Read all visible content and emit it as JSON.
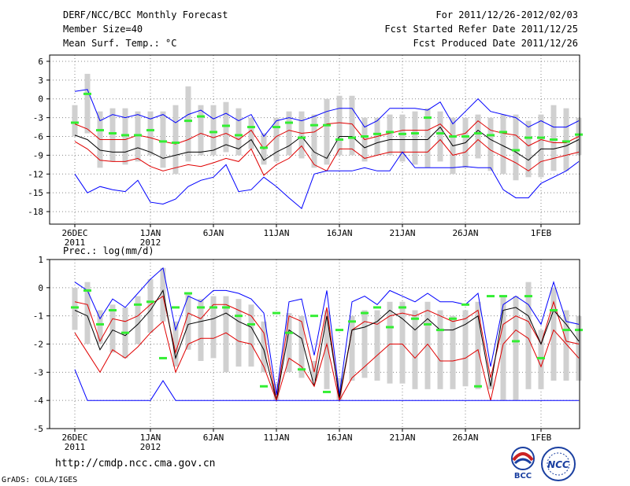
{
  "header": {
    "title": "DERF/NCC/BCC Monthly Forecast",
    "member_size": "Member Size=40",
    "variable": "Mean Surf. Temp.: °C",
    "period": "For 2011/12/26-2012/02/03",
    "started": "Fcst Started Refer Date 2011/12/25",
    "produced": "Fcst Produced Date 2011/12/26"
  },
  "prec_label": "Prec.: log(mm/d)",
  "url": "http://cmdp.ncc.cma.gov.cn",
  "credit": "GrADS: COLA/IGES",
  "logos": {
    "bcc": "BCC",
    "ncc": "NCC"
  },
  "colors": {
    "max_min": "#0000ff",
    "pct": "#e00000",
    "median": "#000000",
    "obs": "#33ee33",
    "box": "#d0d0d0"
  },
  "chart_data": [
    {
      "type": "line",
      "title": "Mean Surf. Temp.: °C",
      "ylim": [
        -20,
        7
      ],
      "yticks": [
        6,
        3,
        0,
        -3,
        -6,
        -9,
        -12,
        -15,
        -18
      ],
      "xticks": [
        {
          "day": 0,
          "label": "26DEC",
          "sub": "2011"
        },
        {
          "day": 6,
          "label": "1JAN",
          "sub": "2012"
        },
        {
          "day": 11,
          "label": "6JAN",
          "sub": ""
        },
        {
          "day": 16,
          "label": "11JAN",
          "sub": ""
        },
        {
          "day": 21,
          "label": "16JAN",
          "sub": ""
        },
        {
          "day": 26,
          "label": "21JAN",
          "sub": ""
        },
        {
          "day": 31,
          "label": "26JAN",
          "sub": ""
        },
        {
          "day": 37,
          "label": "1FEB",
          "sub": ""
        }
      ],
      "days": 40,
      "series": [
        {
          "name": "max",
          "values": [
            1.2,
            1.5,
            -3.5,
            -2.5,
            -3,
            -2.5,
            -3.2,
            -2.5,
            -3.8,
            -2.5,
            -1.8,
            -3.2,
            -2.3,
            -3.5,
            -2.5,
            -6,
            -3.5,
            -3,
            -3.5,
            -2.8,
            -2,
            -1.5,
            -1.5,
            -4.5,
            -3.5,
            -1.5,
            -1.5,
            -1.5,
            -1.8,
            -0.5,
            -4,
            -2,
            0,
            -2,
            -2.5,
            -3,
            -4.5,
            -3.5,
            -4.5,
            -4.5,
            -3.5
          ]
        },
        {
          "name": "p75",
          "values": [
            -4,
            -4.8,
            -6.5,
            -6.5,
            -6.5,
            -5.8,
            -6.2,
            -6.8,
            -7.2,
            -6.5,
            -5.5,
            -6.2,
            -5.5,
            -6.5,
            -5,
            -8,
            -6,
            -5,
            -5.5,
            -5.3,
            -4,
            -3.8,
            -4,
            -6.5,
            -6,
            -5.5,
            -5,
            -5,
            -5,
            -4,
            -6,
            -5.5,
            -3.5,
            -5,
            -5.5,
            -5.8,
            -7.5,
            -6.5,
            -7,
            -7,
            -6
          ]
        },
        {
          "name": "median",
          "values": [
            -5.8,
            -6.5,
            -8.2,
            -8.5,
            -8.5,
            -7.8,
            -8.5,
            -9.5,
            -9,
            -8.5,
            -8.5,
            -8.2,
            -7.3,
            -8,
            -6.5,
            -9.8,
            -8.5,
            -7.5,
            -6,
            -8.5,
            -9.5,
            -6,
            -6,
            -7.8,
            -7,
            -6.5,
            -6.5,
            -6.5,
            -6.5,
            -4.5,
            -7.5,
            -7,
            -5,
            -6.5,
            -7.5,
            -8.5,
            -9.8,
            -8,
            -8,
            -7.5,
            -6.5
          ]
        },
        {
          "name": "p25",
          "values": [
            -6.8,
            -8,
            -9.8,
            -10,
            -10,
            -9.5,
            -10.8,
            -11.5,
            -11,
            -10.5,
            -10.8,
            -10.2,
            -9.5,
            -10,
            -8,
            -12.2,
            -10.5,
            -9.5,
            -7.5,
            -10.5,
            -11.5,
            -8,
            -8,
            -9.5,
            -9,
            -8.5,
            -8.5,
            -8.5,
            -8.5,
            -6.5,
            -9,
            -8.5,
            -6.5,
            -8.2,
            -9.2,
            -10.2,
            -11.5,
            -10,
            -9.5,
            -9,
            -8.5
          ]
        },
        {
          "name": "min",
          "values": [
            -12,
            -15,
            -14,
            -14.5,
            -14.8,
            -13,
            -16.5,
            -16.8,
            -16,
            -14,
            -13,
            -12.5,
            -10.5,
            -14.8,
            -14.5,
            -12.5,
            -14,
            -15.8,
            -17.5,
            -12,
            -11.5,
            -11.5,
            -11.5,
            -11,
            -11.5,
            -11.5,
            -8.5,
            -11,
            -11,
            -11,
            -11,
            -10.8,
            -11,
            -11,
            -14.5,
            -15.8,
            -15.8,
            -13.5,
            -12.5,
            -11.5,
            -10
          ]
        }
      ],
      "boxes": [
        [
          -6,
          -1
        ],
        [
          -5.5,
          4
        ],
        [
          -11,
          -2
        ],
        [
          -10,
          -1.5
        ],
        [
          -10.5,
          -1.5
        ],
        [
          -10,
          -2
        ],
        [
          -9,
          -2
        ],
        [
          -11,
          -2
        ],
        [
          -12,
          -1
        ],
        [
          -10,
          2
        ],
        [
          -9,
          -1
        ],
        [
          -9,
          -1
        ],
        [
          -8.5,
          -0.5
        ],
        [
          -9,
          -1.5
        ],
        [
          -8,
          -3
        ],
        [
          -10.5,
          -5.5
        ],
        [
          -10,
          -3
        ],
        [
          -9,
          -2
        ],
        [
          -9.5,
          -2
        ],
        [
          -11,
          -2.5
        ],
        [
          -10.5,
          0
        ],
        [
          -9,
          0.5
        ],
        [
          -9,
          0.5
        ],
        [
          -10,
          -3
        ],
        [
          -9,
          -3
        ],
        [
          -9,
          -2.5
        ],
        [
          -10,
          -2.5
        ],
        [
          -10.5,
          -2
        ],
        [
          -11,
          -1.5
        ],
        [
          -10,
          -2
        ],
        [
          -12,
          -3
        ],
        [
          -11,
          -3
        ],
        [
          -9.5,
          -2.5
        ],
        [
          -11.5,
          -3
        ],
        [
          -12,
          -2.5
        ],
        [
          -13,
          -2.5
        ],
        [
          -12.5,
          -3.5
        ],
        [
          -12.5,
          -2.5
        ],
        [
          -11.5,
          -1
        ],
        [
          -11.5,
          -1.5
        ],
        [
          -9,
          -3
        ]
      ],
      "obs": [
        -3.8,
        0.8,
        -5,
        -5.5,
        -5.8,
        -5.8,
        -5,
        -6.8,
        -7,
        -3.5,
        -2.8,
        -5.3,
        -4.3,
        -5.8,
        -4.5,
        -7.8,
        -4.5,
        -3.8,
        -6.2,
        -4.2,
        -4.2,
        -6.5,
        -6.2,
        -6,
        -5.6,
        -5.3,
        -5.6,
        -5.5,
        -3,
        -5.5,
        -6,
        -6,
        -5.5,
        -5.8,
        -5.3,
        -8.2,
        -6.2,
        -6.2,
        -6.5,
        -6.8,
        -5.7
      ]
    },
    {
      "type": "line",
      "title": "Prec.: log(mm/d)",
      "ylim": [
        -5,
        1
      ],
      "yticks": [
        1,
        0,
        -1,
        -2,
        -3,
        -4,
        -5
      ],
      "xticks": [
        {
          "day": 0,
          "label": "26DEC",
          "sub": "2011"
        },
        {
          "day": 6,
          "label": "1JAN",
          "sub": "2012"
        },
        {
          "day": 11,
          "label": "6JAN",
          "sub": ""
        },
        {
          "day": 16,
          "label": "11JAN",
          "sub": ""
        },
        {
          "day": 21,
          "label": "16JAN",
          "sub": ""
        },
        {
          "day": 26,
          "label": "21JAN",
          "sub": ""
        },
        {
          "day": 31,
          "label": "26JAN",
          "sub": ""
        },
        {
          "day": 37,
          "label": "1FEB",
          "sub": ""
        }
      ],
      "days": 40,
      "series": [
        {
          "name": "max",
          "values": [
            0.2,
            -0.1,
            -1.1,
            -0.4,
            -0.7,
            -0.2,
            0.3,
            0.7,
            -1.5,
            -0.3,
            -0.5,
            -0.1,
            -0.1,
            -0.2,
            -0.4,
            -0.9,
            -3.8,
            -0.5,
            -0.4,
            -2.4,
            -0.1,
            -3.8,
            -0.5,
            -0.3,
            -0.6,
            -0.1,
            -0.3,
            -0.5,
            -0.2,
            -0.5,
            -0.5,
            -0.6,
            -0.2,
            -2.8,
            -0.6,
            -0.3,
            -0.6,
            -1.3,
            0.2,
            -1.2,
            -1.3
          ]
        },
        {
          "name": "p75",
          "values": [
            -0.5,
            -0.6,
            -1.9,
            -1.1,
            -1.2,
            -1,
            -0.6,
            -0.3,
            -2.3,
            -0.9,
            -1.1,
            -0.6,
            -0.6,
            -0.8,
            -1,
            -1.6,
            -4,
            -1,
            -1.2,
            -3,
            -0.7,
            -4,
            -1.5,
            -1.2,
            -1.3,
            -1,
            -0.9,
            -1,
            -0.8,
            -1,
            -1.2,
            -1.1,
            -0.8,
            -3.2,
            -1.3,
            -1,
            -1.2,
            -2,
            -0.5,
            -1.9,
            -2
          ]
        },
        {
          "name": "median",
          "values": [
            -0.8,
            -1,
            -2.2,
            -1.5,
            -1.7,
            -1.3,
            -0.8,
            -0.1,
            -2.5,
            -1.3,
            -1.2,
            -1.1,
            -0.9,
            -1.2,
            -1.4,
            -2.2,
            -4,
            -1.5,
            -1.8,
            -3.5,
            -1,
            -3.9,
            -1.5,
            -1.4,
            -1.2,
            -0.8,
            -1.1,
            -1.5,
            -1.1,
            -1.5,
            -1.5,
            -1.3,
            -1,
            -3.5,
            -0.8,
            -0.7,
            -1,
            -2,
            -0.8,
            -1.3,
            -1.9
          ]
        },
        {
          "name": "p25",
          "values": [
            -1.6,
            -2.3,
            -3,
            -2.2,
            -2.5,
            -2.1,
            -1.6,
            -1.2,
            -3,
            -2,
            -1.8,
            -1.8,
            -1.6,
            -1.9,
            -2,
            -2.8,
            -4,
            -2.5,
            -2.8,
            -3.5,
            -2,
            -4,
            -3.2,
            -2.8,
            -2.4,
            -2,
            -2,
            -2.5,
            -2,
            -2.6,
            -2.6,
            -2.5,
            -2.2,
            -4,
            -2,
            -1.5,
            -1.8,
            -2.8,
            -1.5,
            -2,
            -2.5
          ]
        },
        {
          "name": "min",
          "values": [
            -2.9,
            -4,
            -4,
            -4,
            -4,
            -4,
            -4,
            -3.3,
            -4,
            -4,
            -4,
            -4,
            -4,
            -4,
            -4,
            -4,
            -4,
            -4,
            -4,
            -4,
            -4,
            -4,
            -4,
            -4,
            -4,
            -4,
            -4,
            -4,
            -4,
            -4,
            -4,
            -4,
            -4,
            -4,
            -4,
            -4,
            -4,
            -4,
            -4,
            -4,
            -4
          ]
        }
      ],
      "boxes": [
        [
          -1.5,
          0
        ],
        [
          -2,
          0.2
        ],
        [
          -2,
          -0.8
        ],
        [
          -2.3,
          -0.6
        ],
        [
          -2.5,
          -0.7
        ],
        [
          -2,
          -0.3
        ],
        [
          -1.6,
          0.3
        ],
        [
          -1.2,
          0.7
        ],
        [
          -2.8,
          -1.2
        ],
        [
          -2.2,
          -0.2
        ],
        [
          -2.6,
          -0.4
        ],
        [
          -2.5,
          -0.3
        ],
        [
          -3,
          -0.3
        ],
        [
          -2.8,
          -0.4
        ],
        [
          -2.8,
          -0.6
        ],
        [
          -3,
          -1.2
        ],
        [
          -4,
          -3.4
        ],
        [
          -3,
          -0.9
        ],
        [
          -3.2,
          -1
        ],
        [
          -3.3,
          -2.6
        ],
        [
          -3.6,
          -0.8
        ],
        [
          -4,
          -3.2
        ],
        [
          -3.3,
          -1
        ],
        [
          -3.2,
          -0.8
        ],
        [
          -3.3,
          -0.8
        ],
        [
          -3.4,
          -0.5
        ],
        [
          -3.4,
          -0.5
        ],
        [
          -3.6,
          -0.8
        ],
        [
          -3.6,
          -0.5
        ],
        [
          -3.6,
          -0.8
        ],
        [
          -3.6,
          -1
        ],
        [
          -3.5,
          -0.8
        ],
        [
          -3.6,
          -0.5
        ],
        [
          -3.6,
          -3.2
        ],
        [
          -4,
          -0.3
        ],
        [
          -4,
          -0.3
        ],
        [
          -3.6,
          0.2
        ],
        [
          -3.6,
          -1.5
        ],
        [
          -3.3,
          0
        ],
        [
          -3.3,
          -0.8
        ],
        [
          -3.3,
          -1
        ]
      ],
      "obs": [
        -0.7,
        -0.1,
        -1.3,
        -0.8,
        -1.6,
        -0.6,
        -0.5,
        -2.5,
        -0.7,
        -0.2,
        -0.7,
        -0.7,
        -0.7,
        -1,
        -1.3,
        -3.5,
        -0.9,
        -1.6,
        -2.9,
        -1,
        -3.7,
        -1.5,
        -1.2,
        -0.9,
        -0.7,
        -1.4,
        -0.7,
        -1.1,
        -1.3,
        -1.5,
        -1.1,
        -0.6,
        -3.5,
        -0.3,
        -0.3,
        -1.9,
        -0.3,
        -2.5,
        -0.8,
        -1.5,
        -1.5
      ]
    }
  ]
}
